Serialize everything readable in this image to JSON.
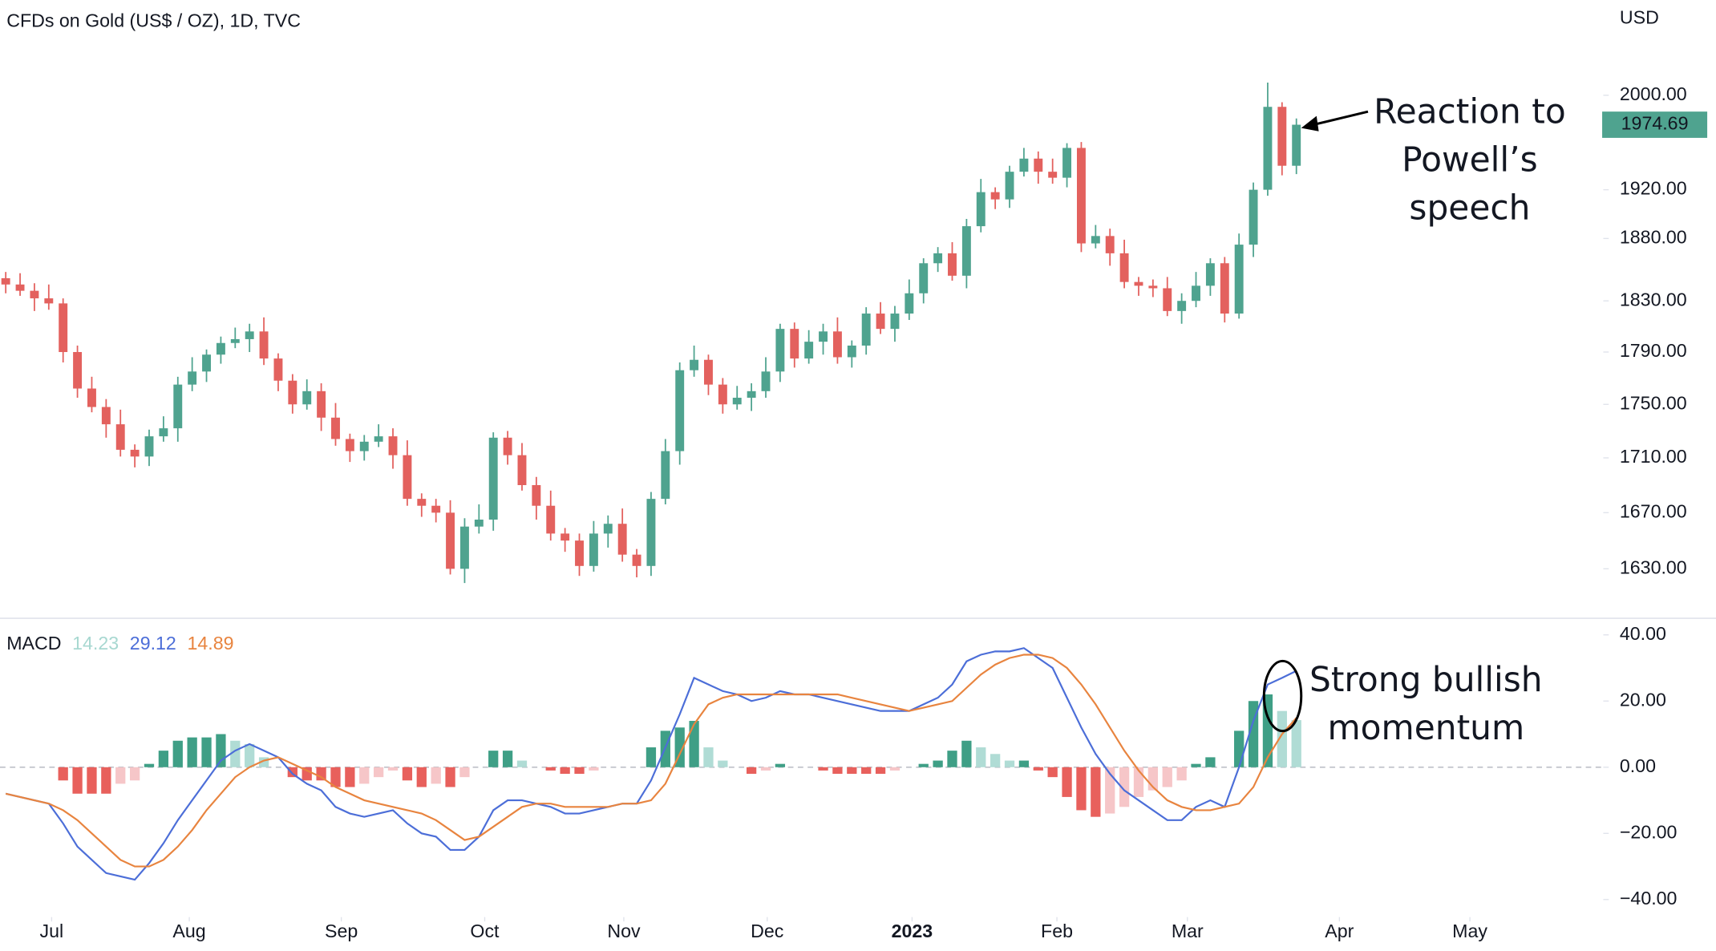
{
  "chart_data": [
    {
      "type": "candlestick",
      "title": "CFDs on Gold (US$ / OZ), 1D, TVC",
      "unit": "USD",
      "log": true,
      "up_color": "#4fa38f",
      "down_color": "#e3615e",
      "ylim": [
        1595.5,
        2084
      ],
      "yticks": [
        {
          "value": 2000,
          "label": "2000.00"
        },
        {
          "value": 1920,
          "label": "1920.00"
        },
        {
          "value": 1880,
          "label": "1880.00"
        },
        {
          "value": 1830,
          "label": "1830.00"
        },
        {
          "value": 1790,
          "label": "1790.00"
        },
        {
          "value": 1750,
          "label": "1750.00"
        },
        {
          "value": 1710,
          "label": "1710.00"
        },
        {
          "value": 1670,
          "label": "1670.00"
        },
        {
          "value": 1630,
          "label": "1630.00"
        }
      ],
      "open": [
        1848,
        1843,
        1838,
        1832,
        1828,
        1790,
        1762,
        1748,
        1735,
        1716,
        1711,
        1726,
        1732,
        1765,
        1775,
        1788,
        1797,
        1800,
        1806,
        1785,
        1768,
        1750,
        1760,
        1740,
        1724,
        1715,
        1722,
        1726,
        1712,
        1680,
        1675,
        1670,
        1630,
        1660,
        1665,
        1725,
        1712,
        1690,
        1675,
        1655,
        1650,
        1632,
        1655,
        1662,
        1640,
        1632,
        1680,
        1715,
        1776,
        1784,
        1765,
        1750,
        1755,
        1760,
        1775,
        1808,
        1785,
        1798,
        1806,
        1786,
        1795,
        1820,
        1808,
        1820,
        1836,
        1860,
        1868,
        1850,
        1890,
        1918,
        1912,
        1935,
        1946,
        1935,
        1930,
        1955,
        1876,
        1882,
        1868,
        1845,
        1842,
        1840,
        1822,
        1830,
        1842,
        1860,
        1820,
        1875,
        1920,
        1990,
        1940
      ],
      "high": [
        1853,
        1852,
        1844,
        1843,
        1832,
        1795,
        1771,
        1754,
        1746,
        1720,
        1731,
        1741,
        1771,
        1786,
        1792,
        1802,
        1809,
        1812,
        1817,
        1789,
        1773,
        1769,
        1766,
        1751,
        1728,
        1727,
        1735,
        1732,
        1723,
        1684,
        1680,
        1679,
        1666,
        1676,
        1729,
        1730,
        1721,
        1696,
        1686,
        1659,
        1655,
        1664,
        1668,
        1673,
        1644,
        1685,
        1724,
        1782,
        1795,
        1788,
        1770,
        1764,
        1766,
        1786,
        1812,
        1813,
        1807,
        1812,
        1817,
        1799,
        1825,
        1829,
        1826,
        1847,
        1864,
        1873,
        1877,
        1896,
        1929,
        1922,
        1940,
        1955,
        1952,
        1946,
        1959,
        1960,
        1891,
        1888,
        1879,
        1849,
        1847,
        1849,
        1836,
        1853,
        1864,
        1865,
        1884,
        1926,
        2011,
        1994,
        1980
      ],
      "low": [
        1836,
        1834,
        1822,
        1823,
        1782,
        1755,
        1744,
        1725,
        1711,
        1703,
        1704,
        1722,
        1722,
        1760,
        1767,
        1781,
        1793,
        1790,
        1780,
        1760,
        1743,
        1746,
        1730,
        1719,
        1707,
        1708,
        1718,
        1702,
        1675,
        1667,
        1663,
        1626,
        1620,
        1655,
        1657,
        1705,
        1686,
        1665,
        1650,
        1642,
        1625,
        1628,
        1645,
        1635,
        1624,
        1625,
        1676,
        1705,
        1771,
        1757,
        1743,
        1746,
        1745,
        1755,
        1767,
        1778,
        1781,
        1788,
        1781,
        1778,
        1788,
        1804,
        1798,
        1815,
        1828,
        1853,
        1846,
        1840,
        1885,
        1904,
        1905,
        1931,
        1925,
        1925,
        1922,
        1869,
        1872,
        1858,
        1840,
        1834,
        1833,
        1818,
        1812,
        1825,
        1834,
        1813,
        1816,
        1865,
        1915,
        1932,
        1933
      ],
      "close": [
        1843,
        1838,
        1832,
        1828,
        1790,
        1762,
        1748,
        1735,
        1716,
        1711,
        1726,
        1732,
        1765,
        1775,
        1788,
        1797,
        1800,
        1806,
        1785,
        1768,
        1750,
        1760,
        1740,
        1724,
        1715,
        1722,
        1726,
        1712,
        1680,
        1675,
        1670,
        1630,
        1660,
        1665,
        1725,
        1712,
        1690,
        1675,
        1655,
        1650,
        1632,
        1655,
        1662,
        1640,
        1632,
        1680,
        1715,
        1776,
        1784,
        1765,
        1750,
        1755,
        1760,
        1775,
        1808,
        1785,
        1798,
        1806,
        1786,
        1795,
        1820,
        1808,
        1820,
        1836,
        1860,
        1868,
        1850,
        1890,
        1918,
        1912,
        1935,
        1946,
        1935,
        1930,
        1955,
        1876,
        1882,
        1868,
        1845,
        1842,
        1840,
        1822,
        1830,
        1842,
        1860,
        1820,
        1875,
        1920,
        1990,
        1940,
        1974.69
      ],
      "annotations": [
        {
          "text": [
            "Reaction to",
            "Powell’s",
            "speech"
          ]
        }
      ]
    },
    {
      "type": "macd",
      "title": "MACD",
      "ylim": [
        -45.3,
        45
      ],
      "yticks": [
        {
          "value": 40,
          "label": "40.00"
        },
        {
          "value": 20,
          "label": "20.00"
        },
        {
          "value": 0,
          "label": "0.00"
        },
        {
          "value": -20,
          "label": "−20.00"
        },
        {
          "value": -40,
          "label": "−40.00"
        }
      ],
      "xlim": [
        -0.4,
        111.4
      ],
      "xticks": [
        {
          "value": 3.2,
          "label": "Jul"
        },
        {
          "value": 12.8,
          "label": "Aug"
        },
        {
          "value": 23.4,
          "label": "Sep"
        },
        {
          "value": 33.4,
          "label": "Oct"
        },
        {
          "value": 43.1,
          "label": "Nov"
        },
        {
          "value": 53.1,
          "label": "Dec"
        },
        {
          "value": 63.2,
          "label": "2023"
        },
        {
          "value": 73.3,
          "label": "Feb"
        },
        {
          "value": 82.4,
          "label": "Mar"
        },
        {
          "value": 93,
          "label": "Apr"
        },
        {
          "value": 102.1,
          "label": "May"
        }
      ],
      "zero_line": true,
      "series": [
        {
          "kind": "histogram",
          "color": "#a8d8d1",
          "colors": {
            "pos_rising": "#3f9f86",
            "pos_falling": "#b0dcd5",
            "neg_falling": "#e8605c",
            "neg_rising": "#f6c6c8"
          },
          "values": [
            0,
            0,
            0,
            0,
            -4,
            -8,
            -8,
            -8,
            -5,
            -4,
            1,
            5,
            8,
            9,
            9,
            10,
            8,
            7,
            3,
            0,
            -3,
            -4,
            -4,
            -6,
            -6,
            -5,
            -3,
            -1,
            -4,
            -6,
            -5,
            -6,
            -3,
            0,
            5,
            5,
            2,
            0,
            -1,
            -2,
            -2,
            -1,
            0,
            0,
            0,
            6,
            11,
            12,
            14,
            6,
            2,
            0,
            -2,
            -1,
            1,
            0,
            0,
            -1,
            -2,
            -2,
            -2,
            -2,
            -1,
            0,
            1,
            2,
            5,
            8,
            6,
            4,
            2,
            2,
            -1,
            -3,
            -9,
            -13,
            -15,
            -14,
            -12,
            -9,
            -7,
            -6,
            -4,
            1,
            3,
            0,
            11,
            20,
            22,
            17,
            14.23
          ]
        },
        {
          "kind": "line",
          "color": "#4c6ed8",
          "values": [
            -8,
            -9,
            -10,
            -11,
            -17,
            -24,
            -28,
            -32,
            -33,
            -34,
            -29,
            -23,
            -16,
            -10,
            -4,
            2,
            5,
            7,
            5,
            3,
            -2,
            -5,
            -7,
            -12,
            -14,
            -15,
            -14,
            -13,
            -17,
            -20,
            -21,
            -25,
            -25,
            -21,
            -13,
            -10,
            -10,
            -11,
            -12,
            -14,
            -14,
            -13,
            -12,
            -11,
            -11,
            -4,
            6,
            16,
            27,
            25,
            23,
            22,
            20,
            21,
            23,
            22,
            22,
            21,
            20,
            19,
            18,
            17,
            17,
            17,
            19,
            21,
            25,
            32,
            34,
            35,
            35,
            36,
            33,
            30,
            21,
            12,
            4,
            -2,
            -7,
            -10,
            -13,
            -16,
            -16,
            -12,
            -10,
            -12,
            0,
            14,
            25,
            27,
            29.12
          ]
        },
        {
          "kind": "line",
          "color": "#e8843f",
          "values": [
            -8,
            -9,
            -10,
            -11,
            -13,
            -16,
            -20,
            -24,
            -28,
            -30,
            -30,
            -28,
            -24,
            -19,
            -13,
            -8,
            -3,
            0,
            2,
            3,
            1,
            -1,
            -3,
            -6,
            -8,
            -10,
            -11,
            -12,
            -13,
            -14,
            -16,
            -19,
            -22,
            -21,
            -18,
            -15,
            -12,
            -11,
            -11,
            -12,
            -12,
            -12,
            -12,
            -11,
            -11,
            -10,
            -5,
            4,
            13,
            19,
            21,
            22,
            22,
            22,
            22,
            22,
            22,
            22,
            22,
            21,
            20,
            19,
            18,
            17,
            18,
            19,
            20,
            24,
            28,
            31,
            33,
            34,
            34,
            33,
            30,
            25,
            19,
            12,
            5,
            -1,
            -6,
            -10,
            -12,
            -13,
            -13,
            -12,
            -11,
            -6,
            3,
            10,
            14.89
          ]
        }
      ],
      "annotations": [
        {
          "text": [
            "Strong bullish",
            "momentum"
          ]
        }
      ]
    }
  ]
}
